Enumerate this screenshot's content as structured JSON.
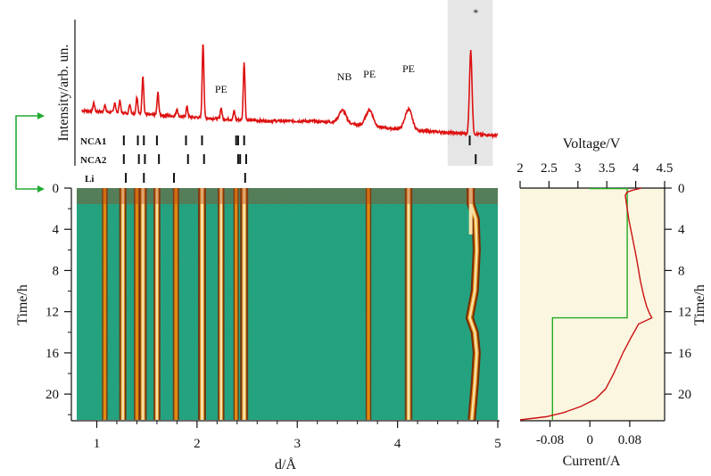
{
  "chart_data": [
    {
      "id": "xrd-pattern",
      "type": "line",
      "ylabel": "Intensity/arb. un.",
      "xlim": [
        0.8,
        5.0
      ],
      "colors": {
        "line": "#dd1111",
        "highlight": "#e6e6e6"
      },
      "highlight_region": [
        4.5,
        4.95
      ],
      "highlight_mark": "*",
      "peaks": [
        {
          "x": 0.97,
          "y": 0.1
        },
        {
          "x": 1.08,
          "y": 0.08
        },
        {
          "x": 1.18,
          "y": 0.12
        },
        {
          "x": 1.23,
          "y": 0.14
        },
        {
          "x": 1.33,
          "y": 0.11
        },
        {
          "x": 1.4,
          "y": 0.2
        },
        {
          "x": 1.46,
          "y": 0.45
        },
        {
          "x": 1.61,
          "y": 0.26
        },
        {
          "x": 1.8,
          "y": 0.09
        },
        {
          "x": 1.9,
          "y": 0.12
        },
        {
          "x": 2.06,
          "y": 0.88
        },
        {
          "x": 2.24,
          "y": 0.13
        },
        {
          "x": 2.37,
          "y": 0.1
        },
        {
          "x": 2.47,
          "y": 0.68
        },
        {
          "x": 3.45,
          "y": 0.15
        },
        {
          "x": 3.72,
          "y": 0.19
        },
        {
          "x": 4.11,
          "y": 0.24
        },
        {
          "x": 4.73,
          "y": 0.97
        }
      ],
      "annotations": [
        {
          "text": "PE",
          "x": 2.24
        },
        {
          "text": "NB",
          "x": 3.47
        },
        {
          "text": "PE",
          "x": 3.72
        },
        {
          "text": "PE",
          "x": 4.11
        }
      ]
    },
    {
      "id": "reference-ticks",
      "type": "scatter",
      "series": [
        {
          "name": "NCA1",
          "x": [
            1.27,
            1.41,
            1.47,
            1.6,
            1.89,
            2.05,
            2.39,
            2.41,
            2.47,
            4.72
          ]
        },
        {
          "name": "NCA2",
          "x": [
            1.27,
            1.42,
            1.48,
            1.62,
            1.91,
            2.07,
            2.41,
            2.43,
            2.49,
            4.78
          ]
        },
        {
          "name": "Li",
          "x": [
            1.29,
            1.47,
            1.77,
            2.48
          ]
        }
      ]
    },
    {
      "id": "heatmap",
      "type": "heatmap",
      "xlabel": "d/Å",
      "ylabel": "Time/h",
      "xlim": [
        0.8,
        5.0
      ],
      "ylim": [
        0,
        22.5
      ],
      "xticks": [
        1,
        2,
        3,
        4,
        5
      ],
      "yticks": [
        0,
        4,
        8,
        12,
        16,
        20
      ],
      "colors": {
        "background": "#1fa37e",
        "band_dark": "#7a2a05",
        "band_mid": "#e08a10",
        "band_core": "#f7e2a8"
      },
      "bands": [
        {
          "x": 1.08,
          "strength": 0.55
        },
        {
          "x": 1.26,
          "strength": 0.85
        },
        {
          "x": 1.4,
          "strength": 0.6
        },
        {
          "x": 1.46,
          "strength": 0.95
        },
        {
          "x": 1.6,
          "strength": 0.8
        },
        {
          "x": 1.79,
          "strength": 0.65
        },
        {
          "x": 2.05,
          "strength": 1.0
        },
        {
          "x": 2.24,
          "strength": 0.75
        },
        {
          "x": 2.39,
          "strength": 0.5
        },
        {
          "x": 2.47,
          "strength": 1.0
        },
        {
          "x": 3.71,
          "strength": 0.55
        },
        {
          "x": 4.11,
          "strength": 0.9
        },
        {
          "x": 4.73,
          "strength": 1.0
        }
      ]
    },
    {
      "id": "electrochem",
      "type": "line",
      "x_top_label": "Voltage/V",
      "x_bottom_label": "Current/A",
      "ylabel": "Time/h",
      "voltage_range": [
        2,
        4.5
      ],
      "voltage_ticks": [
        2,
        2.5,
        3,
        3.5,
        4,
        4.5
      ],
      "current_range": [
        -0.14,
        0.15
      ],
      "current_ticks": [
        -0.08,
        0,
        0.08
      ],
      "ylim": [
        0,
        22.5
      ],
      "yticks": [
        0,
        4,
        8,
        12,
        16,
        20
      ],
      "colors": {
        "background": "#fbf6e0",
        "voltage": "#cc1111",
        "current": "#22aa22"
      },
      "series": [
        {
          "name": "",
          "quantity": "voltage",
          "t": [
            0,
            0.2,
            0.4,
            0.7,
            1.5,
            3,
            5,
            7,
            9,
            10.5,
            11.5,
            12.2,
            12.6,
            13.2,
            14.5,
            16,
            18,
            19.5,
            20.5,
            21.2,
            21.8,
            22.2,
            22.5
          ],
          "v": [
            4.1,
            3.95,
            3.85,
            3.82,
            3.84,
            3.88,
            3.95,
            4.02,
            4.08,
            4.14,
            4.19,
            4.24,
            4.28,
            4.05,
            3.92,
            3.78,
            3.62,
            3.48,
            3.3,
            3.05,
            2.75,
            2.45,
            2.0
          ]
        },
        {
          "name": "",
          "quantity": "current",
          "t": [
            0,
            0.05,
            0.05,
            12.6,
            12.6,
            22.5
          ],
          "i": [
            0,
            0,
            0.075,
            0.075,
            -0.075,
            -0.075
          ]
        }
      ]
    }
  ]
}
